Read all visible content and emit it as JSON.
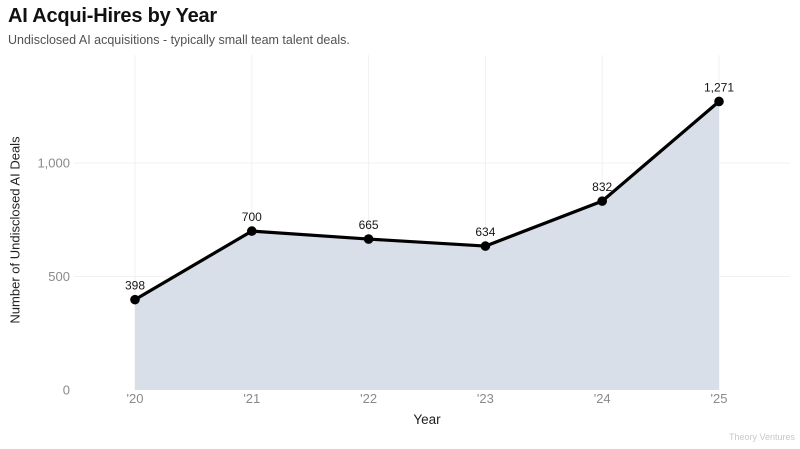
{
  "chart_data": {
    "type": "area",
    "title": "AI Acqui-Hires by Year",
    "subtitle": "Undisclosed AI acquisitions - typically small team talent deals.",
    "categories": [
      "'20",
      "'21",
      "'22",
      "'23",
      "'24",
      "'25"
    ],
    "values": [
      398,
      700,
      665,
      634,
      832,
      1271
    ],
    "value_labels": [
      "398",
      "700",
      "665",
      "634",
      "832",
      "1,271"
    ],
    "xlabel": "Year",
    "ylabel": "Number of Undisclosed AI Deals",
    "ylim": [
      0,
      1350
    ],
    "yticks": {
      "values": [
        0,
        500,
        1000
      ],
      "labels": [
        "0",
        "500",
        "1,000"
      ]
    },
    "grid": true,
    "legend": "none",
    "colors": {
      "line": "#000000",
      "point": "#000000",
      "area_fill": "#d9dfe9",
      "grid": "#f1f1f1",
      "tick_label": "#8a8a8a",
      "value_label": "#161616",
      "axis_title": "#222222"
    }
  },
  "footer": {
    "watermark": "Theory Ventures"
  }
}
